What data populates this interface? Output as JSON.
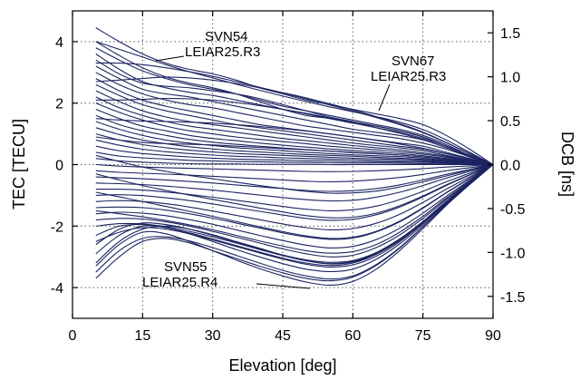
{
  "chart_data": {
    "type": "line",
    "title": "",
    "xlabel": "Elevation [deg]",
    "ylabel": "TEC [TECU]",
    "ylabel_right": "DCB [ns]",
    "xlim": [
      0,
      90
    ],
    "ylim": [
      -5,
      5
    ],
    "y2lim": [
      -1.75,
      1.75
    ],
    "x_ticks": [
      0,
      15,
      30,
      45,
      60,
      75,
      90
    ],
    "x_tick_labels": [
      "0",
      "15",
      "30",
      "45",
      "60",
      "75",
      "90"
    ],
    "y_ticks": [
      -4,
      -2,
      0,
      2,
      4
    ],
    "y_tick_labels": [
      "-4",
      "-2",
      "0",
      "2",
      "4"
    ],
    "y2_ticks": [
      -1.5,
      -1.0,
      -0.5,
      0.0,
      0.5,
      1.0,
      1.5
    ],
    "y2_tick_labels": [
      "-1.5",
      "-1.0",
      "-0.5",
      "0.0",
      "0.5",
      "1.0",
      "1.5"
    ],
    "grid": true,
    "line_color": "#1c2461",
    "x": [
      5,
      10,
      15,
      20,
      25,
      30,
      35,
      40,
      45,
      50,
      55,
      60,
      65,
      70,
      75,
      80,
      85,
      90
    ],
    "series": [
      {
        "values": [
          4.45,
          4.0,
          3.6,
          3.3,
          3.1,
          2.95,
          2.75,
          2.5,
          2.3,
          2.1,
          1.95,
          1.8,
          1.65,
          1.5,
          1.3,
          0.95,
          0.5,
          0.0
        ]
      },
      {
        "values": [
          4.0,
          3.55,
          3.15,
          2.85,
          2.65,
          2.5,
          2.3,
          2.05,
          1.8,
          1.6,
          1.5,
          1.35,
          1.2,
          1.05,
          0.85,
          0.6,
          0.3,
          0.0
        ]
      },
      {
        "values": [
          3.8,
          3.4,
          3.05,
          2.8,
          2.6,
          2.45,
          2.3,
          2.1,
          1.9,
          1.75,
          1.6,
          1.45,
          1.3,
          1.15,
          0.95,
          0.65,
          0.3,
          0.0
        ]
      },
      {
        "values": [
          3.6,
          3.1,
          2.7,
          2.5,
          2.35,
          2.25,
          2.1,
          1.95,
          1.8,
          1.65,
          1.5,
          1.35,
          1.25,
          1.1,
          0.9,
          0.6,
          0.3,
          0.0
        ]
      },
      {
        "values": [
          3.4,
          2.95,
          2.65,
          2.55,
          2.5,
          2.4,
          2.3,
          2.15,
          1.95,
          1.75,
          1.55,
          1.4,
          1.25,
          1.1,
          0.9,
          0.6,
          0.3,
          0.0
        ]
      },
      {
        "values": [
          3.2,
          2.8,
          2.45,
          2.3,
          2.2,
          2.05,
          1.9,
          1.75,
          1.6,
          1.45,
          1.3,
          1.15,
          1.05,
          0.95,
          0.8,
          0.55,
          0.25,
          0.0
        ]
      },
      {
        "values": [
          3.0,
          2.6,
          2.3,
          2.1,
          1.95,
          1.85,
          1.7,
          1.55,
          1.4,
          1.25,
          1.15,
          1.05,
          0.95,
          0.85,
          0.7,
          0.5,
          0.25,
          0.0
        ]
      },
      {
        "values": [
          2.8,
          2.4,
          2.1,
          1.9,
          1.75,
          1.6,
          1.45,
          1.3,
          1.2,
          1.1,
          1.0,
          0.9,
          0.8,
          0.7,
          0.6,
          0.4,
          0.2,
          0.0
        ]
      },
      {
        "values": [
          2.6,
          2.25,
          1.95,
          1.75,
          1.6,
          1.45,
          1.3,
          1.2,
          1.1,
          1.0,
          0.9,
          0.8,
          0.7,
          0.6,
          0.5,
          0.35,
          0.18,
          0.0
        ]
      },
      {
        "values": [
          2.4,
          2.05,
          1.75,
          1.55,
          1.4,
          1.3,
          1.2,
          1.1,
          1.0,
          0.9,
          0.8,
          0.7,
          0.62,
          0.55,
          0.45,
          0.3,
          0.15,
          0.0
        ]
      },
      {
        "values": [
          2.2,
          1.85,
          1.6,
          1.4,
          1.25,
          1.15,
          1.05,
          0.95,
          0.85,
          0.78,
          0.7,
          0.62,
          0.55,
          0.48,
          0.38,
          0.27,
          0.13,
          0.0
        ]
      },
      {
        "values": [
          2.0,
          1.7,
          1.45,
          1.25,
          1.1,
          1.0,
          0.9,
          0.82,
          0.75,
          0.68,
          0.6,
          0.54,
          0.48,
          0.42,
          0.34,
          0.24,
          0.12,
          0.0
        ]
      },
      {
        "values": [
          1.8,
          1.5,
          1.25,
          1.1,
          0.95,
          0.85,
          0.78,
          0.7,
          0.63,
          0.57,
          0.51,
          0.46,
          0.41,
          0.36,
          0.29,
          0.2,
          0.1,
          0.0
        ]
      },
      {
        "values": [
          1.6,
          1.3,
          1.1,
          0.95,
          0.82,
          0.73,
          0.66,
          0.6,
          0.54,
          0.49,
          0.44,
          0.39,
          0.35,
          0.31,
          0.25,
          0.17,
          0.09,
          0.0
        ]
      },
      {
        "values": [
          1.4,
          1.15,
          0.95,
          0.8,
          0.7,
          0.62,
          0.55,
          0.5,
          0.45,
          0.4,
          0.36,
          0.32,
          0.29,
          0.26,
          0.21,
          0.14,
          0.07,
          0.0
        ]
      },
      {
        "values": [
          1.2,
          0.98,
          0.8,
          0.68,
          0.58,
          0.51,
          0.45,
          0.41,
          0.37,
          0.33,
          0.3,
          0.27,
          0.24,
          0.21,
          0.17,
          0.12,
          0.06,
          0.0
        ]
      },
      {
        "values": [
          1.0,
          0.8,
          0.65,
          0.55,
          0.47,
          0.41,
          0.36,
          0.33,
          0.3,
          0.27,
          0.24,
          0.21,
          0.19,
          0.17,
          0.14,
          0.09,
          0.05,
          0.0
        ]
      },
      {
        "values": [
          0.8,
          0.63,
          0.5,
          0.42,
          0.36,
          0.31,
          0.27,
          0.25,
          0.22,
          0.2,
          0.18,
          0.16,
          0.14,
          0.12,
          0.1,
          0.07,
          0.03,
          0.0
        ]
      },
      {
        "values": [
          0.6,
          0.45,
          0.36,
          0.3,
          0.25,
          0.21,
          0.18,
          0.16,
          0.15,
          0.13,
          0.12,
          0.1,
          0.09,
          0.08,
          0.07,
          0.05,
          0.02,
          0.0
        ]
      },
      {
        "values": [
          0.4,
          0.28,
          0.22,
          0.18,
          0.14,
          0.12,
          0.1,
          0.09,
          0.08,
          0.07,
          0.06,
          0.05,
          0.05,
          0.04,
          0.03,
          0.02,
          0.01,
          0.0
        ]
      },
      {
        "values": [
          0.2,
          0.12,
          0.08,
          0.05,
          0.03,
          0.02,
          0.02,
          0.01,
          0.01,
          0.01,
          0.0,
          0.0,
          0.0,
          0.0,
          0.0,
          0.0,
          0.0,
          0.0
        ]
      },
      {
        "values": [
          0.0,
          -0.05,
          -0.08,
          -0.1,
          -0.12,
          -0.14,
          -0.16,
          -0.18,
          -0.2,
          -0.22,
          -0.23,
          -0.22,
          -0.2,
          -0.17,
          -0.13,
          -0.08,
          -0.04,
          0.0
        ]
      },
      {
        "values": [
          -0.2,
          -0.25,
          -0.28,
          -0.31,
          -0.34,
          -0.38,
          -0.42,
          -0.46,
          -0.5,
          -0.54,
          -0.56,
          -0.54,
          -0.49,
          -0.42,
          -0.32,
          -0.2,
          -0.1,
          0.0
        ]
      },
      {
        "values": [
          -0.4,
          -0.43,
          -0.46,
          -0.5,
          -0.55,
          -0.6,
          -0.66,
          -0.72,
          -0.78,
          -0.84,
          -0.87,
          -0.85,
          -0.78,
          -0.66,
          -0.5,
          -0.32,
          -0.16,
          0.0
        ]
      },
      {
        "values": [
          -0.6,
          -0.62,
          -0.65,
          -0.7,
          -0.76,
          -0.83,
          -0.91,
          -0.99,
          -1.07,
          -1.14,
          -1.18,
          -1.16,
          -1.06,
          -0.9,
          -0.68,
          -0.44,
          -0.22,
          0.0
        ]
      },
      {
        "values": [
          -0.8,
          -0.8,
          -0.83,
          -0.89,
          -0.97,
          -1.06,
          -1.16,
          -1.26,
          -1.36,
          -1.45,
          -1.5,
          -1.47,
          -1.35,
          -1.14,
          -0.87,
          -0.56,
          -0.28,
          0.0
        ]
      },
      {
        "values": [
          -1.0,
          -0.98,
          -1.01,
          -1.08,
          -1.17,
          -1.28,
          -1.4,
          -1.52,
          -1.64,
          -1.75,
          -1.81,
          -1.78,
          -1.63,
          -1.38,
          -1.05,
          -0.68,
          -0.34,
          0.0
        ]
      },
      {
        "values": [
          -1.2,
          -1.17,
          -1.2,
          -1.27,
          -1.38,
          -1.51,
          -1.65,
          -1.79,
          -1.93,
          -2.05,
          -2.12,
          -2.08,
          -1.91,
          -1.62,
          -1.23,
          -0.8,
          -0.4,
          0.0
        ]
      },
      {
        "values": [
          -1.4,
          -1.38,
          -1.4,
          -1.48,
          -1.6,
          -1.74,
          -1.9,
          -2.06,
          -2.22,
          -2.35,
          -2.43,
          -2.39,
          -2.19,
          -1.86,
          -1.42,
          -0.92,
          -0.46,
          0.0
        ]
      },
      {
        "values": [
          -1.6,
          -1.55,
          -1.58,
          -1.66,
          -1.79,
          -1.94,
          -2.12,
          -2.3,
          -2.47,
          -2.62,
          -2.71,
          -2.66,
          -2.44,
          -2.07,
          -1.58,
          -1.03,
          -0.51,
          0.0
        ]
      },
      {
        "values": [
          -1.8,
          -1.75,
          -1.77,
          -1.86,
          -2.0,
          -2.17,
          -2.36,
          -2.55,
          -2.74,
          -2.9,
          -3.0,
          -2.95,
          -2.7,
          -2.29,
          -1.75,
          -1.14,
          -0.57,
          0.0
        ]
      },
      {
        "values": [
          -2.0,
          -1.92,
          -1.93,
          -2.02,
          -2.17,
          -2.35,
          -2.55,
          -2.76,
          -2.96,
          -3.13,
          -3.23,
          -3.17,
          -2.91,
          -2.47,
          -1.89,
          -1.23,
          -0.61,
          0.0
        ]
      },
      {
        "values": [
          -2.3,
          -2.0,
          -1.95,
          -2.05,
          -2.22,
          -2.42,
          -2.63,
          -2.84,
          -3.04,
          -3.2,
          -3.28,
          -3.2,
          -2.92,
          -2.46,
          -1.87,
          -1.21,
          -0.6,
          0.0
        ]
      },
      {
        "values": [
          -2.6,
          -2.1,
          -1.9,
          -1.95,
          -2.1,
          -2.3,
          -2.52,
          -2.74,
          -2.94,
          -3.1,
          -3.18,
          -3.12,
          -2.86,
          -2.42,
          -1.85,
          -1.2,
          -0.6,
          0.0
        ]
      },
      {
        "values": [
          -2.9,
          -2.3,
          -2.0,
          -2.05,
          -2.25,
          -2.5,
          -2.76,
          -3.0,
          -3.22,
          -3.4,
          -3.48,
          -3.4,
          -3.08,
          -2.58,
          -1.95,
          -1.26,
          -0.62,
          0.0
        ]
      },
      {
        "values": [
          -3.3,
          -2.6,
          -2.2,
          -2.25,
          -2.5,
          -2.8,
          -3.1,
          -3.38,
          -3.62,
          -3.82,
          -3.92,
          -3.8,
          -3.4,
          -2.8,
          -2.08,
          -1.33,
          -0.65,
          0.0
        ]
      },
      {
        "values": [
          -3.7,
          -3.0,
          -2.5,
          -2.4,
          -2.55,
          -2.8,
          -3.05,
          -3.3,
          -3.52,
          -3.7,
          -3.78,
          -3.66,
          -3.28,
          -2.72,
          -2.02,
          -1.3,
          -0.64,
          0.0
        ]
      },
      {
        "values": [
          -3.5,
          -2.8,
          -2.4,
          -2.35,
          -2.48,
          -2.7,
          -2.95,
          -3.2,
          -3.44,
          -3.62,
          -3.72,
          -3.62,
          -3.25,
          -2.7,
          -2.01,
          -1.29,
          -0.64,
          0.0
        ]
      },
      {
        "values": [
          -3.2,
          -2.5,
          -2.1,
          -2.0,
          -2.1,
          -2.28,
          -2.5,
          -2.72,
          -2.94,
          -3.12,
          -3.22,
          -3.15,
          -2.88,
          -2.43,
          -1.85,
          -1.2,
          -0.6,
          0.0
        ]
      },
      {
        "values": [
          -2.5,
          -2.2,
          -2.05,
          -2.1,
          -2.25,
          -2.45,
          -2.66,
          -2.87,
          -3.07,
          -3.24,
          -3.33,
          -3.26,
          -2.98,
          -2.51,
          -1.9,
          -1.23,
          -0.61,
          0.0
        ]
      },
      {
        "values": [
          -1.5,
          -1.6,
          -1.7,
          -1.82,
          -1.96,
          -2.12,
          -2.3,
          -2.48,
          -2.65,
          -2.8,
          -2.88,
          -2.83,
          -2.6,
          -2.2,
          -1.68,
          -1.09,
          -0.54,
          0.0
        ]
      },
      {
        "values": [
          -0.9,
          -1.05,
          -1.2,
          -1.36,
          -1.52,
          -1.68,
          -1.85,
          -2.02,
          -2.18,
          -2.32,
          -2.4,
          -2.36,
          -2.17,
          -1.84,
          -1.4,
          -0.91,
          -0.45,
          0.0
        ]
      },
      {
        "values": [
          -0.3,
          -0.5,
          -0.68,
          -0.84,
          -0.99,
          -1.13,
          -1.27,
          -1.41,
          -1.54,
          -1.66,
          -1.73,
          -1.71,
          -1.58,
          -1.34,
          -1.02,
          -0.66,
          -0.33,
          0.0
        ]
      },
      {
        "values": [
          0.3,
          0.1,
          -0.08,
          -0.22,
          -0.35,
          -0.46,
          -0.57,
          -0.68,
          -0.78,
          -0.87,
          -0.93,
          -0.92,
          -0.86,
          -0.73,
          -0.56,
          -0.37,
          -0.18,
          0.0
        ]
      },
      {
        "values": [
          0.9,
          0.8,
          0.72,
          0.68,
          0.66,
          0.64,
          0.6,
          0.56,
          0.52,
          0.48,
          0.44,
          0.4,
          0.36,
          0.31,
          0.25,
          0.17,
          0.08,
          0.0
        ]
      },
      {
        "values": [
          1.5,
          1.45,
          1.42,
          1.4,
          1.38,
          1.35,
          1.3,
          1.24,
          1.17,
          1.09,
          1.0,
          0.9,
          0.79,
          0.67,
          0.53,
          0.36,
          0.18,
          0.0
        ]
      },
      {
        "values": [
          2.1,
          2.1,
          2.12,
          2.15,
          2.14,
          2.1,
          2.02,
          1.92,
          1.8,
          1.67,
          1.52,
          1.37,
          1.2,
          1.02,
          0.81,
          0.55,
          0.27,
          0.0
        ]
      },
      {
        "values": [
          2.7,
          2.75,
          2.8,
          2.85,
          2.82,
          2.75,
          2.64,
          2.5,
          2.34,
          2.17,
          1.98,
          1.78,
          1.56,
          1.33,
          1.06,
          0.72,
          0.36,
          0.0
        ]
      },
      {
        "values": [
          3.3,
          3.3,
          3.25,
          3.15,
          3.02,
          2.87,
          2.7,
          2.52,
          2.33,
          2.14,
          1.94,
          1.74,
          1.53,
          1.3,
          1.04,
          0.71,
          0.35,
          0.0
        ]
      },
      {
        "values": [
          4.0,
          3.75,
          3.5,
          3.25,
          3.02,
          2.82,
          2.62,
          2.42,
          2.23,
          2.05,
          1.88,
          1.72,
          1.56,
          1.38,
          1.14,
          0.8,
          0.4,
          0.0
        ]
      }
    ],
    "annotations": [
      {
        "id": "svn54",
        "line1": "SVN54",
        "line2": "LEIAR25.R3"
      },
      {
        "id": "svn67",
        "line1": "SVN67",
        "line2": "LEIAR25.R3"
      },
      {
        "id": "svn55",
        "line1": "SVN55",
        "line2": "LEIAR25.R4"
      }
    ]
  }
}
